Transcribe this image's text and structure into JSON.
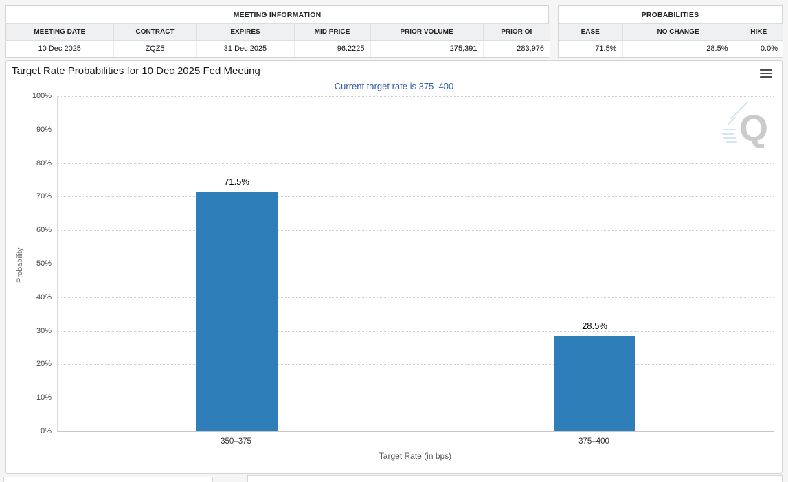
{
  "meeting_info": {
    "title": "MEETING INFORMATION",
    "headers": [
      "MEETING DATE",
      "CONTRACT",
      "EXPIRES",
      "MID PRICE",
      "PRIOR VOLUME",
      "PRIOR OI"
    ],
    "row": [
      "10 Dec 2025",
      "ZQZ5",
      "31 Dec 2025",
      "96.2225",
      "275,391",
      "283,976"
    ]
  },
  "probabilities": {
    "title": "PROBABILITIES",
    "headers": [
      "EASE",
      "NO CHANGE",
      "HIKE"
    ],
    "row": [
      "71.5%",
      "28.5%",
      "0.0%"
    ]
  },
  "chart_data": {
    "type": "bar",
    "title": "Target Rate Probabilities for 10 Dec 2025 Fed Meeting",
    "subtitle": "Current target rate is 375–400",
    "categories": [
      "350–375",
      "375–400"
    ],
    "values": [
      71.5,
      28.5
    ],
    "value_labels": [
      "71.5%",
      "28.5%"
    ],
    "xlabel": "Target Rate (in bps)",
    "ylabel": "Probability",
    "ylim": [
      0,
      100
    ],
    "ytick_step": 10,
    "ytick_suffix": "%",
    "bar_color": "#2e7fb9",
    "subtitle_color": "#335cad",
    "grid": "dotted-horizontal",
    "legend": "none",
    "watermark": "Q"
  }
}
